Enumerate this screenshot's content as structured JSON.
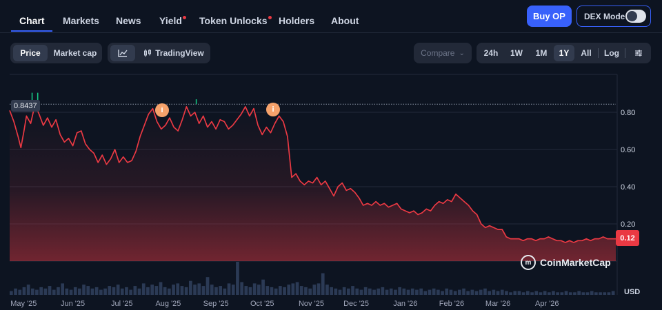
{
  "nav": {
    "tabs": [
      {
        "label": "Chart",
        "dot": false
      },
      {
        "label": "Markets",
        "dot": false
      },
      {
        "label": "News",
        "dot": false
      },
      {
        "label": "Yield",
        "dot": true
      },
      {
        "label": "Token Unlocks",
        "dot": true
      },
      {
        "label": "Holders",
        "dot": false
      },
      {
        "label": "About",
        "dot": false
      }
    ],
    "buy_label": "Buy OP",
    "dex_label": "DEX Mode"
  },
  "toolbar": {
    "price_label": "Price",
    "mcap_label": "Market cap",
    "tradingview_label": "TradingView",
    "compare_label": "Compare",
    "ranges": [
      "24h",
      "1W",
      "1M",
      "1Y",
      "All"
    ],
    "active_range": "1Y",
    "log_label": "Log"
  },
  "chart": {
    "start_label": "0.8437",
    "last_label": "0.12",
    "currency": "USD",
    "watermark": "CoinMarketCap",
    "colors": {
      "line": "#ea3943",
      "volume": "#2b3a55",
      "up": "#16c784"
    }
  },
  "chart_data": {
    "type": "line",
    "x_ticks": [
      "May '25",
      "Jun '25",
      "Jul '25",
      "Aug '25",
      "Sep '25",
      "Oct '25",
      "Nov '25",
      "Dec '25",
      "Jan '26",
      "Feb '26",
      "Mar '26",
      "Apr '26"
    ],
    "y_ticks": [
      "0.80",
      "0.60",
      "0.40",
      "0.20"
    ],
    "ylim": [
      0,
      1.0
    ],
    "reference_line": 0.8437,
    "last_value": 0.12,
    "series": [
      {
        "values": [
          [
            0,
            0.81
          ],
          [
            0.3,
            0.75
          ],
          [
            0.6,
            0.67
          ],
          [
            0.8,
            0.61
          ],
          [
            1.0,
            0.69
          ],
          [
            1.2,
            0.78
          ],
          [
            1.5,
            0.74
          ],
          [
            1.8,
            0.84
          ],
          [
            2.1,
            0.79
          ],
          [
            2.4,
            0.73
          ],
          [
            2.7,
            0.77
          ],
          [
            3.0,
            0.72
          ],
          [
            3.3,
            0.76
          ],
          [
            3.6,
            0.68
          ],
          [
            3.9,
            0.64
          ],
          [
            4.2,
            0.66
          ],
          [
            4.5,
            0.62
          ],
          [
            4.8,
            0.69
          ],
          [
            5.1,
            0.7
          ],
          [
            5.4,
            0.63
          ],
          [
            5.7,
            0.6
          ],
          [
            6.0,
            0.58
          ],
          [
            6.3,
            0.53
          ],
          [
            6.6,
            0.57
          ],
          [
            6.9,
            0.52
          ],
          [
            7.2,
            0.55
          ],
          [
            7.5,
            0.6
          ],
          [
            7.8,
            0.53
          ],
          [
            8.1,
            0.56
          ],
          [
            8.4,
            0.53
          ],
          [
            8.7,
            0.54
          ],
          [
            9.0,
            0.59
          ],
          [
            9.3,
            0.67
          ],
          [
            9.6,
            0.73
          ],
          [
            9.9,
            0.79
          ],
          [
            10.2,
            0.82
          ],
          [
            10.5,
            0.75
          ],
          [
            10.8,
            0.71
          ],
          [
            11.1,
            0.73
          ],
          [
            11.4,
            0.77
          ],
          [
            11.7,
            0.72
          ],
          [
            12.0,
            0.7
          ],
          [
            12.3,
            0.76
          ],
          [
            12.6,
            0.83
          ],
          [
            12.9,
            0.78
          ],
          [
            13.2,
            0.8
          ],
          [
            13.5,
            0.74
          ],
          [
            13.8,
            0.78
          ],
          [
            14.1,
            0.72
          ],
          [
            14.4,
            0.75
          ],
          [
            14.7,
            0.71
          ],
          [
            15.0,
            0.76
          ],
          [
            15.3,
            0.75
          ],
          [
            15.6,
            0.71
          ],
          [
            15.9,
            0.73
          ],
          [
            16.2,
            0.76
          ],
          [
            16.5,
            0.79
          ],
          [
            16.8,
            0.83
          ],
          [
            17.1,
            0.78
          ],
          [
            17.4,
            0.82
          ],
          [
            17.7,
            0.73
          ],
          [
            18.0,
            0.68
          ],
          [
            18.3,
            0.72
          ],
          [
            18.6,
            0.69
          ],
          [
            18.9,
            0.74
          ],
          [
            19.2,
            0.78
          ],
          [
            19.5,
            0.75
          ],
          [
            19.8,
            0.67
          ],
          [
            20.1,
            0.45
          ],
          [
            20.4,
            0.47
          ],
          [
            20.7,
            0.43
          ],
          [
            21.0,
            0.41
          ],
          [
            21.3,
            0.43
          ],
          [
            21.6,
            0.42
          ],
          [
            21.9,
            0.45
          ],
          [
            22.2,
            0.41
          ],
          [
            22.5,
            0.43
          ],
          [
            22.8,
            0.39
          ],
          [
            23.1,
            0.35
          ],
          [
            23.4,
            0.4
          ],
          [
            23.7,
            0.42
          ],
          [
            24.0,
            0.38
          ],
          [
            24.3,
            0.39
          ],
          [
            24.6,
            0.37
          ],
          [
            24.9,
            0.34
          ],
          [
            25.2,
            0.3
          ],
          [
            25.5,
            0.31
          ],
          [
            25.8,
            0.3
          ],
          [
            26.1,
            0.32
          ],
          [
            26.4,
            0.3
          ],
          [
            26.7,
            0.31
          ],
          [
            27.0,
            0.29
          ],
          [
            27.3,
            0.3
          ],
          [
            27.6,
            0.31
          ],
          [
            27.9,
            0.28
          ],
          [
            28.2,
            0.27
          ],
          [
            28.5,
            0.26
          ],
          [
            28.8,
            0.27
          ],
          [
            29.1,
            0.25
          ],
          [
            29.4,
            0.26
          ],
          [
            29.7,
            0.28
          ],
          [
            30.0,
            0.27
          ],
          [
            30.3,
            0.3
          ],
          [
            30.6,
            0.32
          ],
          [
            30.9,
            0.31
          ],
          [
            31.2,
            0.33
          ],
          [
            31.5,
            0.32
          ],
          [
            31.8,
            0.36
          ],
          [
            32.1,
            0.34
          ],
          [
            32.4,
            0.32
          ],
          [
            32.7,
            0.3
          ],
          [
            33.0,
            0.27
          ],
          [
            33.3,
            0.25
          ],
          [
            33.6,
            0.2
          ],
          [
            33.9,
            0.18
          ],
          [
            34.2,
            0.19
          ],
          [
            34.5,
            0.18
          ],
          [
            34.8,
            0.17
          ],
          [
            35.1,
            0.17
          ],
          [
            35.4,
            0.13
          ],
          [
            35.7,
            0.12
          ],
          [
            36.0,
            0.12
          ],
          [
            36.3,
            0.12
          ],
          [
            36.6,
            0.11
          ],
          [
            36.9,
            0.12
          ],
          [
            37.2,
            0.12
          ],
          [
            37.5,
            0.11
          ],
          [
            37.8,
            0.12
          ],
          [
            38.1,
            0.12
          ],
          [
            38.4,
            0.13
          ],
          [
            38.7,
            0.12
          ],
          [
            39.0,
            0.11
          ],
          [
            39.3,
            0.11
          ],
          [
            39.6,
            0.1
          ],
          [
            39.9,
            0.11
          ],
          [
            40.2,
            0.1
          ],
          [
            40.5,
            0.11
          ],
          [
            40.8,
            0.11
          ],
          [
            41.1,
            0.12
          ],
          [
            41.4,
            0.11
          ],
          [
            41.7,
            0.12
          ],
          [
            42.0,
            0.12
          ],
          [
            42.3,
            0.13
          ],
          [
            42.6,
            0.12
          ],
          [
            42.9,
            0.12
          ],
          [
            43.2,
            0.12
          ]
        ]
      }
    ],
    "x_range": [
      0,
      43.2
    ],
    "month_positions": [
      1,
      4.5,
      8,
      11.3,
      14.7,
      18,
      21.5,
      24.7,
      28.2,
      31.5,
      34.8,
      38.3
    ],
    "volume": [
      3,
      5,
      4,
      6,
      8,
      5,
      4,
      6,
      5,
      7,
      4,
      6,
      9,
      5,
      4,
      6,
      5,
      8,
      7,
      5,
      6,
      4,
      5,
      7,
      6,
      8,
      5,
      6,
      4,
      7,
      5,
      9,
      6,
      8,
      7,
      10,
      6,
      5,
      8,
      9,
      7,
      6,
      11,
      8,
      9,
      7,
      14,
      8,
      6,
      7,
      5,
      9,
      8,
      26,
      10,
      7,
      6,
      9,
      8,
      12,
      7,
      6,
      5,
      7,
      6,
      8,
      9,
      10,
      7,
      6,
      5,
      8,
      9,
      17,
      8,
      6,
      5,
      4,
      6,
      5,
      7,
      5,
      4,
      6,
      5,
      4,
      5,
      6,
      4,
      5,
      4,
      6,
      5,
      4,
      5,
      4,
      5,
      3,
      4,
      5,
      4,
      3,
      5,
      4,
      3,
      4,
      5,
      3,
      4,
      3,
      4,
      5,
      3,
      4,
      3,
      4,
      3,
      2,
      3,
      3,
      2,
      3,
      2,
      3,
      2,
      3,
      2,
      3,
      2,
      2,
      3,
      2,
      2,
      3,
      2,
      2,
      3,
      2,
      2,
      2,
      2,
      3
    ]
  }
}
